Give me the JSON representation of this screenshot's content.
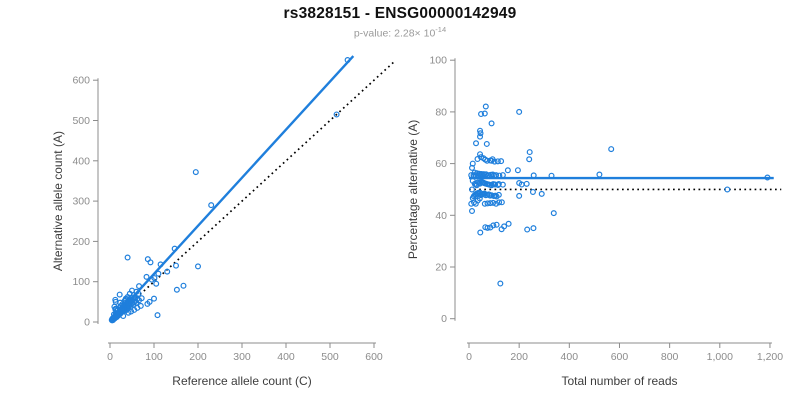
{
  "header": {
    "title": "rs3828151 - ENSG00000142949",
    "pvalue_prefix": "p-value: ",
    "pvalue_base": "2.28× 10",
    "pvalue_exponent": "-14"
  },
  "colors": {
    "accent": "#1f7fdc",
    "reference": "#000000",
    "axis": "#8c8c8c",
    "tick_label": "#8c8c8c",
    "axis_title": "#3d3d3d",
    "title": "#111111",
    "subtitle": "#9a9a9a",
    "background": "#ffffff"
  },
  "chart_data": {
    "type": "scatter",
    "title": "rs3828151 - ENSG00000142949",
    "subtitle": "p-value: 2.28×10^-14",
    "points_ref_alt": [
      [
        540,
        650
      ],
      [
        515,
        515
      ],
      [
        195,
        372
      ],
      [
        230,
        290
      ],
      [
        147,
        182
      ],
      [
        86,
        156
      ],
      [
        40,
        160
      ],
      [
        115,
        143
      ],
      [
        92,
        148
      ],
      [
        200,
        138
      ],
      [
        167,
        90
      ],
      [
        108,
        17
      ],
      [
        95,
        105
      ],
      [
        110,
        120
      ],
      [
        130,
        125
      ],
      [
        105,
        95
      ],
      [
        150,
        140
      ],
      [
        152,
        80
      ],
      [
        83,
        112
      ],
      [
        66,
        89
      ],
      [
        101,
        109
      ],
      [
        72,
        59
      ],
      [
        12,
        55
      ],
      [
        10,
        38
      ],
      [
        13,
        50
      ],
      [
        22,
        68
      ],
      [
        12,
        32
      ],
      [
        13,
        33
      ],
      [
        13,
        31
      ],
      [
        9,
        19
      ],
      [
        23,
        48
      ],
      [
        30,
        15
      ],
      [
        42,
        23
      ],
      [
        55,
        30
      ],
      [
        62,
        35
      ],
      [
        70,
        40
      ],
      [
        48,
        26
      ],
      [
        90,
        50
      ],
      [
        100,
        58
      ],
      [
        85,
        45
      ],
      [
        4,
        5
      ],
      [
        5,
        4
      ],
      [
        5,
        7
      ],
      [
        6,
        6
      ],
      [
        6,
        9
      ],
      [
        7,
        8
      ],
      [
        8,
        7
      ],
      [
        8,
        10
      ],
      [
        9,
        11
      ],
      [
        10,
        9
      ],
      [
        10,
        13
      ],
      [
        11,
        12
      ],
      [
        12,
        11
      ],
      [
        12,
        15
      ],
      [
        13,
        14
      ],
      [
        14,
        13
      ],
      [
        14,
        18
      ],
      [
        15,
        16
      ],
      [
        16,
        15
      ],
      [
        16,
        20
      ],
      [
        17,
        19
      ],
      [
        18,
        17
      ],
      [
        18,
        23
      ],
      [
        19,
        21
      ],
      [
        20,
        19
      ],
      [
        20,
        25
      ],
      [
        21,
        23
      ],
      [
        22,
        21
      ],
      [
        22,
        28
      ],
      [
        23,
        26
      ],
      [
        24,
        22
      ],
      [
        24,
        30
      ],
      [
        25,
        28
      ],
      [
        26,
        24
      ],
      [
        26,
        33
      ],
      [
        27,
        30
      ],
      [
        28,
        26
      ],
      [
        28,
        35
      ],
      [
        29,
        32
      ],
      [
        30,
        28
      ],
      [
        30,
        38
      ],
      [
        31,
        34
      ],
      [
        32,
        30
      ],
      [
        33,
        41
      ],
      [
        34,
        37
      ],
      [
        35,
        32
      ],
      [
        36,
        45
      ],
      [
        37,
        40
      ],
      [
        38,
        35
      ],
      [
        39,
        49
      ],
      [
        40,
        43
      ],
      [
        41,
        38
      ],
      [
        42,
        53
      ],
      [
        43,
        46
      ],
      [
        44,
        40
      ],
      [
        45,
        56
      ],
      [
        46,
        50
      ],
      [
        47,
        43
      ],
      [
        48,
        60
      ],
      [
        50,
        54
      ],
      [
        52,
        47
      ],
      [
        54,
        67
      ],
      [
        56,
        60
      ],
      [
        58,
        52
      ],
      [
        60,
        75
      ],
      [
        35,
        55
      ],
      [
        28,
        44
      ],
      [
        22,
        36
      ],
      [
        45,
        70
      ],
      [
        50,
        78
      ],
      [
        40,
        62
      ],
      [
        33,
        52
      ],
      [
        25,
        40
      ],
      [
        18,
        30
      ],
      [
        55,
        50
      ],
      [
        65,
        70
      ],
      [
        13,
        21
      ],
      [
        16,
        28
      ],
      [
        36,
        58
      ],
      [
        44,
        47
      ],
      [
        57,
        62
      ],
      [
        62,
        57
      ],
      [
        48,
        52
      ],
      [
        31,
        29
      ],
      [
        27,
        25
      ],
      [
        23,
        20
      ],
      [
        19,
        16
      ],
      [
        15,
        12
      ],
      [
        11,
        9
      ],
      [
        7,
        5
      ],
      [
        35,
        28
      ],
      [
        41,
        33
      ],
      [
        47,
        38
      ],
      [
        53,
        43
      ],
      [
        60,
        48
      ],
      [
        66,
        54
      ]
    ],
    "panels": [
      {
        "name": "allele-counts",
        "type": "scatter",
        "xlabel": "Reference allele count (C)",
        "ylabel": "Alternative allele count (A)",
        "xticks": [
          0,
          100,
          200,
          300,
          400,
          500,
          600
        ],
        "xtick_labels": [
          "0",
          "100",
          "200",
          "300",
          "400",
          "500",
          "600"
        ],
        "yticks": [
          0,
          100,
          200,
          300,
          400,
          500,
          600
        ],
        "ytick_labels": [
          "0",
          "100",
          "200",
          "300",
          "400",
          "500",
          "600"
        ],
        "xlim": [
          0,
          650
        ],
        "ylim": [
          0,
          665
        ],
        "point_mapping": "x=ref, y=alt",
        "lines": [
          {
            "role": "identity-reference",
            "style": "dotted",
            "x1": 0,
            "y1": 0,
            "x2": 648,
            "y2": 648
          },
          {
            "role": "fit-trend",
            "style": "solid",
            "x1": 0,
            "y1": 0,
            "x2": 553,
            "y2": 660
          }
        ],
        "grid": false,
        "legend": "none"
      },
      {
        "name": "percentage-vs-coverage",
        "type": "scatter",
        "xlabel": "Total number of reads",
        "ylabel": "Percentage alternative (A)",
        "xticks": [
          0,
          200,
          400,
          600,
          800,
          1000,
          1200
        ],
        "xtick_labels": [
          "0",
          "200",
          "400",
          "600",
          "800",
          "1,000",
          "1,200"
        ],
        "yticks": [
          0,
          20,
          40,
          60,
          80,
          100
        ],
        "ytick_labels": [
          "0",
          "20",
          "40",
          "60",
          "80",
          "100"
        ],
        "xlim": [
          0,
          1265
        ],
        "ylim": [
          0,
          100
        ],
        "point_mapping": "x=ref+alt, y=alt/(ref+alt)*100",
        "lines": [
          {
            "role": "null-50pct-reference",
            "style": "dotted",
            "x1": 0,
            "y1": 50,
            "x2": 1245,
            "y2": 50
          },
          {
            "role": "mean-trend",
            "style": "solid",
            "x1": 0,
            "y1": 54.4,
            "x2": 1215,
            "y2": 54.4
          }
        ],
        "grid": false,
        "legend": "none"
      }
    ]
  }
}
